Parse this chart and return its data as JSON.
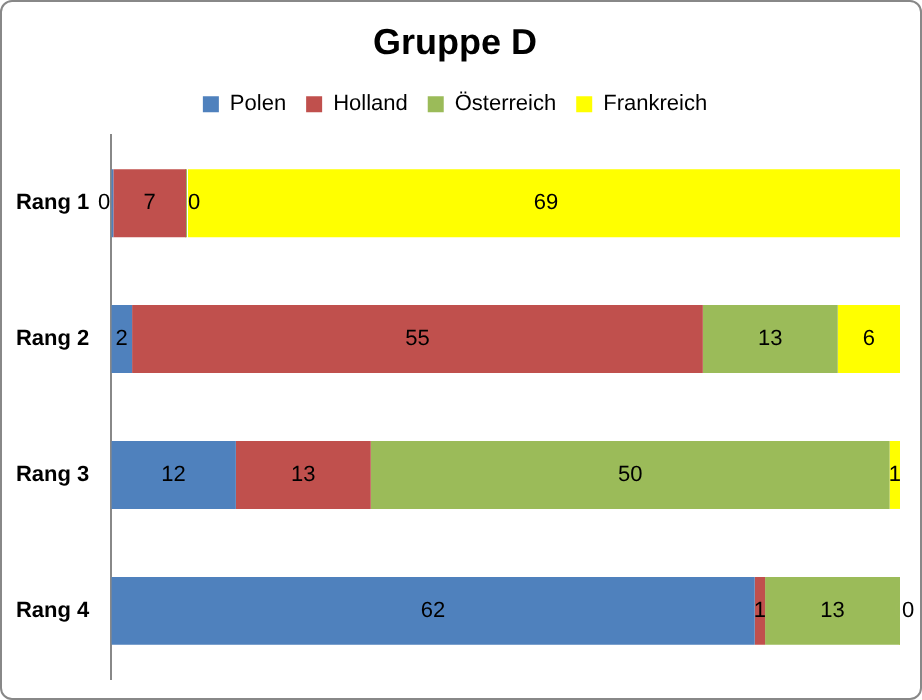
{
  "chart_data": {
    "type": "bar",
    "orientation": "horizontal",
    "stacked": true,
    "title": "Gruppe D",
    "categories": [
      "Rang 1",
      "Rang 2",
      "Rang 3",
      "Rang 4"
    ],
    "series": [
      {
        "name": "Polen",
        "color": "#4f81bd",
        "values": [
          0,
          2,
          12,
          62
        ]
      },
      {
        "name": "Holland",
        "color": "#c0504d",
        "values": [
          7,
          55,
          13,
          1
        ]
      },
      {
        "name": "Österreich",
        "color": "#9bbb59",
        "values": [
          0,
          13,
          50,
          13
        ]
      },
      {
        "name": "Frankreich",
        "color": "#ffff00",
        "values": [
          69,
          6,
          1,
          0
        ]
      }
    ],
    "data_labels": true,
    "legend": "top",
    "tick_labels": "y"
  }
}
